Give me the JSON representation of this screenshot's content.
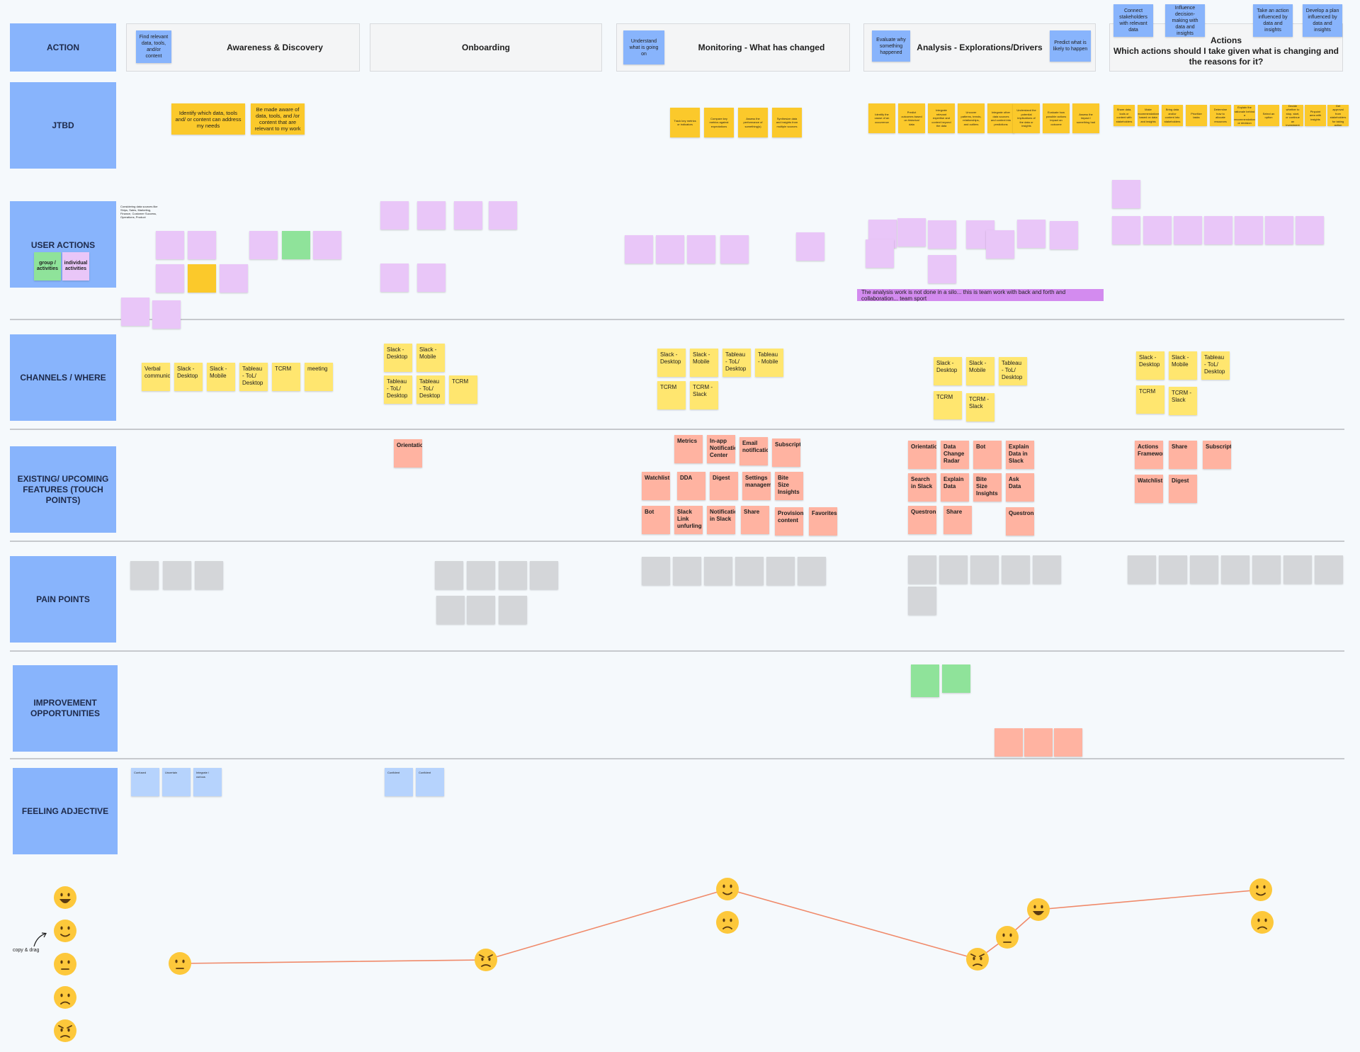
{
  "row_labels": {
    "action": "ACTION",
    "jtbd": "JTBD",
    "user_actions": "USER ACTIONS",
    "channels": "CHANNELS / WHERE",
    "features": "EXISTING/ UPCOMING FEATURES (TOUCH POINTS)",
    "pain_points": "PAIN POINTS",
    "improvement": "IMPROVEMENT OPPORTUNITIES",
    "feeling": "FEELING ADJECTIVE"
  },
  "phases": [
    {
      "title": "Awareness & Discovery",
      "note": "Find relevant data, tools, and/or content"
    },
    {
      "title": "Onboarding"
    },
    {
      "title": "Monitoring - What has changed",
      "note": "Understand what is going on"
    },
    {
      "title": "Analysis - Explorations/Drivers",
      "note": "Evaluate why something happened",
      "note2": "Predict what is likely to happen"
    },
    {
      "title": "Actions\nWhich actions should I take given what is changing and the reasons for it?",
      "notes": [
        "Connect stakeholders with relevant data",
        "Influence decision-making with data and insights",
        "Take an action influenced by data and insights",
        "Develop a plan influenced by data and insights"
      ]
    }
  ],
  "jtbd": {
    "awareness": [
      "Identify which data, tools and/ or content can address my needs",
      "Be made aware of data, tools, and /or content that are relevant to my work"
    ],
    "monitoring": [
      "Track key metrics or indicators",
      "Compare key metrics against expectations",
      "Assess the performance of something(s)",
      "Synthesize data and insights from multiple sources"
    ],
    "analysis": [
      "Identify the cause of an occurrence",
      "Predict outcomes based on historical data",
      "Integrate relevant expertise and context beyond the data",
      "Uncover patterns, trends, relationships, and outliers",
      "Integrate other data sources and context into predictions",
      "Understand the potential implications of the data or insights",
      "Evaluate how possible actions impact an outcome",
      "Assess the impact / something had"
    ],
    "actions": [
      "Share data, tools or content with stakeholders",
      "Make recommendations based on data and insights",
      "Bring data and/or content into stakeholders",
      "Prioritize tasks",
      "Determine how to allocate resources",
      "Explain the rationale behind a recommendation or decision",
      "Select an option",
      "Decide whether to stop, start, or continue an investment",
      "Pinpoint area with insights",
      "Get approval from stakeholders for taking action"
    ]
  },
  "user_actions": {
    "legend": {
      "group": "group / activities",
      "individual": "individual activities"
    },
    "awareness_note": "Considering data sources like Ships, Sales, Marketing, Finance, Customer Success, Operations, Product",
    "banner": "The analysis work is not done in a silo... this is team work with back and forth and collaboration... team sport"
  },
  "channels": {
    "awareness": [
      "Verbal communication",
      "Slack - Desktop",
      "Slack - Mobile",
      "Tableau - ToL/ Desktop",
      "TCRM",
      "meeting"
    ],
    "onboarding": [
      "Slack - Desktop",
      "Slack - Mobile",
      "Tableau - ToL/ Desktop",
      "Tableau - ToL/ Desktop",
      "TCRM"
    ],
    "monitoring": [
      "Slack - Desktop",
      "Slack - Mobile",
      "Tableau - ToL/ Desktop",
      "Tableau - Mobile",
      "TCRM",
      "TCRM - Slack"
    ],
    "analysis": [
      "Slack - Desktop",
      "Slack - Mobile",
      "Tableau - ToL/ Desktop",
      "TCRM",
      "TCRM - Slack"
    ],
    "actions": [
      "Slack - Desktop",
      "Slack - Mobile",
      "Tableau - ToL/ Desktop",
      "TCRM",
      "TCRM - Slack"
    ]
  },
  "features": {
    "onboarding": [
      "Orientation"
    ],
    "monitoring": [
      "Metrics",
      "In-app Notifications Center",
      "Email notification",
      "Subscriptions",
      "Watchlist",
      "DDA",
      "Digest",
      "Settings management",
      "Bite Size Insights",
      "Bot",
      "Slack Link unfurling",
      "Notifications in Slack",
      "Share",
      "Provisioned content",
      "Favorites"
    ],
    "analysis": [
      "Orientation",
      "Data Change Radar",
      "Bot",
      "Explain Data in Slack",
      "Search in Slack",
      "Explain Data",
      "Bite Size Insights",
      "Ask Data",
      "Questron",
      "Share",
      "Questron"
    ],
    "actions": [
      "Actions Framework",
      "Share",
      "Subscriptions",
      "Watchlist",
      "Digest"
    ]
  },
  "feeling": {
    "awareness": [
      "Confused",
      "Uncertain",
      "Integrate / curious"
    ],
    "onboarding": [
      "Confident",
      "Confident"
    ]
  },
  "copy_drag": "copy & drag",
  "chart_data": {
    "type": "line",
    "x": [
      "Awareness & Discovery",
      "Onboarding",
      "Monitoring - What has changed",
      "Analysis",
      "Analysis",
      "Analysis",
      "Actions"
    ],
    "values": [
      3,
      1,
      4,
      1,
      3,
      5,
      5
    ],
    "scale": [
      "angry",
      "sad",
      "neutral",
      "happy",
      "very happy"
    ]
  }
}
